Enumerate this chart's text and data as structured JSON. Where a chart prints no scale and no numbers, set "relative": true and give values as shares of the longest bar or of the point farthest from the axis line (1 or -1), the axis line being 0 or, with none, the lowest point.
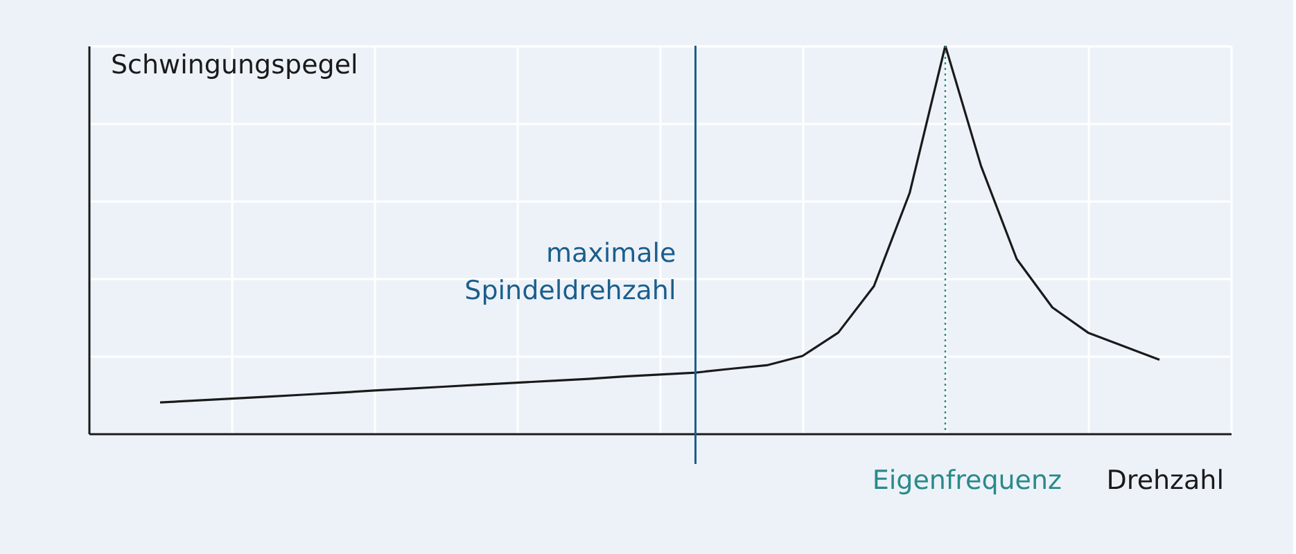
{
  "chart_data": {
    "type": "line",
    "relative": true,
    "xlabel": "Drehzahl",
    "ylabel": "Schwingungspegel",
    "categories": [
      null,
      null,
      null,
      null,
      null,
      null,
      null,
      null,
      null,
      null,
      null,
      null,
      null,
      null,
      null,
      null,
      null,
      null,
      null,
      null,
      null,
      null,
      null,
      null,
      null,
      null,
      null,
      null,
      null,
      null,
      null,
      null,
      null
    ],
    "series": [
      {
        "color": "#1a1a1a",
        "values": [
          null,
          null,
          0.08,
          0.085,
          0.09,
          0.095,
          0.1,
          0.105,
          0.111,
          0.116,
          0.121,
          0.126,
          0.131,
          0.136,
          0.141,
          0.147,
          0.152,
          0.157,
          0.167,
          0.176,
          0.2,
          0.26,
          0.38,
          0.62,
          1.0,
          0.69,
          0.45,
          0.325,
          0.26,
          0.225,
          0.19,
          null,
          null
        ]
      }
    ],
    "annotations": [
      "maximale Spindeldrehzahl",
      "Eigenfrequenz"
    ],
    "grid": true,
    "marker": "none",
    "line_style": "solid"
  }
}
